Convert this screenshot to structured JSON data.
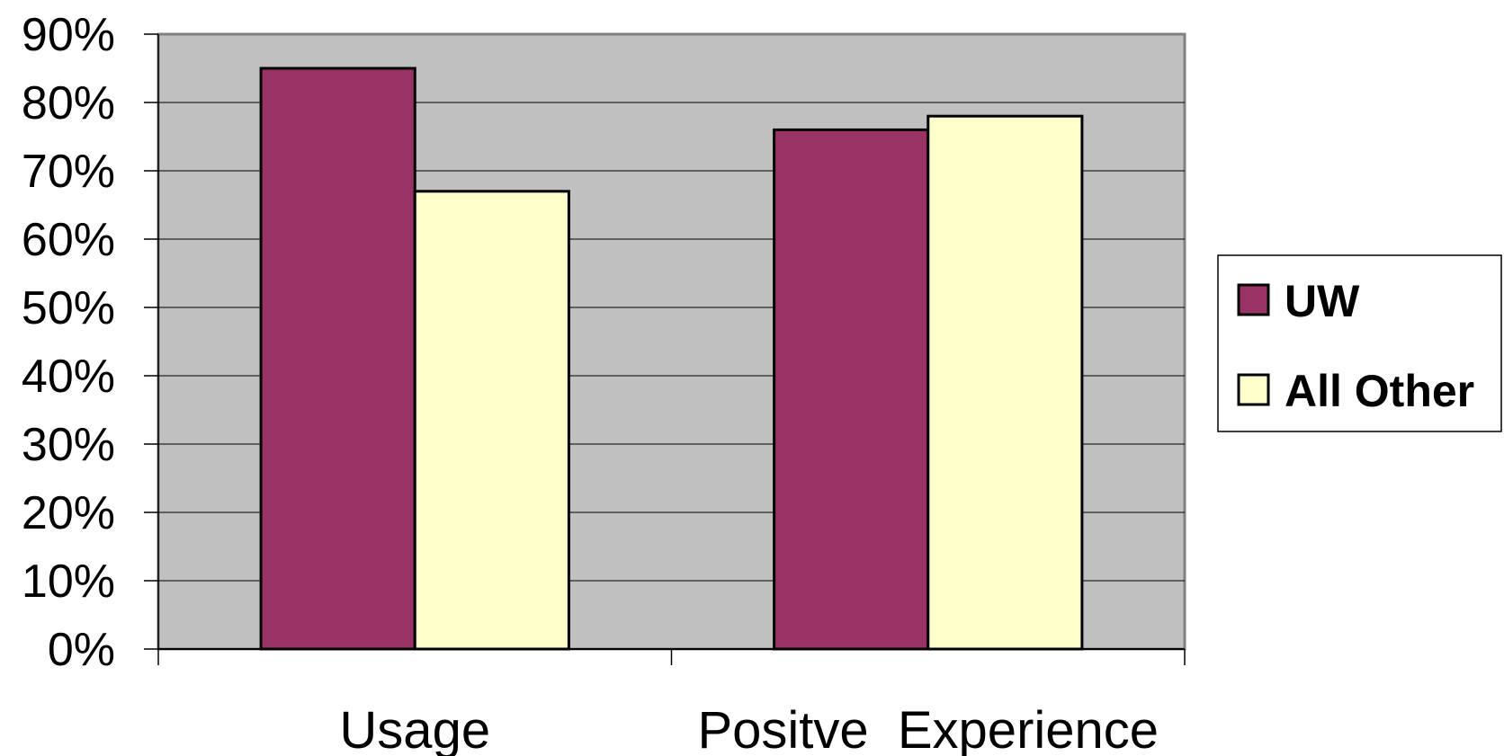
{
  "chart_data": {
    "type": "bar",
    "categories": [
      "Usage",
      "Positve  Experience"
    ],
    "series": [
      {
        "name": "UW",
        "values": [
          0.85,
          0.76
        ],
        "color": "#993366"
      },
      {
        "name": "All Other",
        "values": [
          0.67,
          0.78
        ],
        "color": "#FFFFCC"
      }
    ],
    "ylim": [
      0,
      0.9
    ],
    "yticks": [
      0,
      0.1,
      0.2,
      0.3,
      0.4,
      0.5,
      0.6,
      0.7,
      0.8,
      0.9
    ],
    "ytick_labels": [
      "0%",
      "10%",
      "20%",
      "30%",
      "40%",
      "50%",
      "60%",
      "70%",
      "80%",
      "90%"
    ],
    "grid": true,
    "plot_background": "#C0C0C0",
    "legend_position": "right"
  }
}
